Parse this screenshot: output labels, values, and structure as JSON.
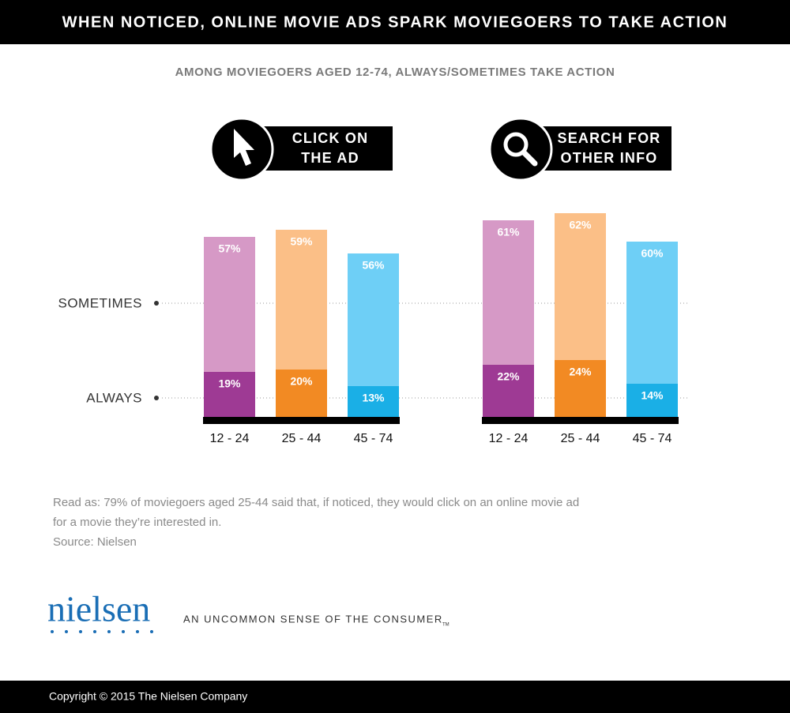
{
  "title": "WHEN NOTICED, ONLINE MOVIE ADS SPARK MOVIEGOERS TO TAKE ACTION",
  "subtitle": "AMONG MOVIEGOERS AGED 12-74, ALWAYS/SOMETIMES TAKE ACTION",
  "chart_data": [
    {
      "type": "stacked-bar",
      "title": [
        "CLICK ON",
        "THE AD"
      ],
      "categories": [
        "12 - 24",
        "25 - 44",
        "45 - 74"
      ],
      "series": [
        {
          "name": "ALWAYS",
          "colors": [
            "#9e3a94",
            "#f28a23",
            "#1aafe6"
          ],
          "values": [
            19,
            20,
            13
          ],
          "value_labels": [
            "19%",
            "20%",
            "13%"
          ]
        },
        {
          "name": "SOMETIMES",
          "colors": [
            "#d699c6",
            "#fbbf87",
            "#6ecff6"
          ],
          "values": [
            57,
            59,
            56
          ],
          "value_labels": [
            "57%",
            "59%",
            "56%"
          ]
        }
      ]
    },
    {
      "type": "stacked-bar",
      "title": [
        "SEARCH FOR",
        "OTHER INFO"
      ],
      "categories": [
        "12 - 24",
        "25 - 44",
        "45 - 74"
      ],
      "series": [
        {
          "colors": [
            "#9e3a94",
            "#f28a23",
            "#1aafe6"
          ],
          "values": [
            22,
            24,
            14
          ],
          "value_labels": [
            "22%",
            "24%",
            "14%"
          ]
        },
        {
          "colors": [
            "#d699c6",
            "#fbbf87",
            "#6ecff6"
          ],
          "values": [
            61,
            62,
            60
          ],
          "value_labels": [
            "61%",
            "62%",
            "60%"
          ]
        }
      ]
    }
  ],
  "note": [
    "Read as: 79% of moviegoers aged 25-44 said that, if noticed, they would click on an online movie ad",
    "for a movie they’re interested in.",
    "Source: Nielsen"
  ],
  "logo": "nielsen",
  "tagline": "AN UNCOMMON SENSE OF THE CONSUMER",
  "trademark": "TM",
  "copyright": "Copyright © 2015 The Nielsen Company"
}
